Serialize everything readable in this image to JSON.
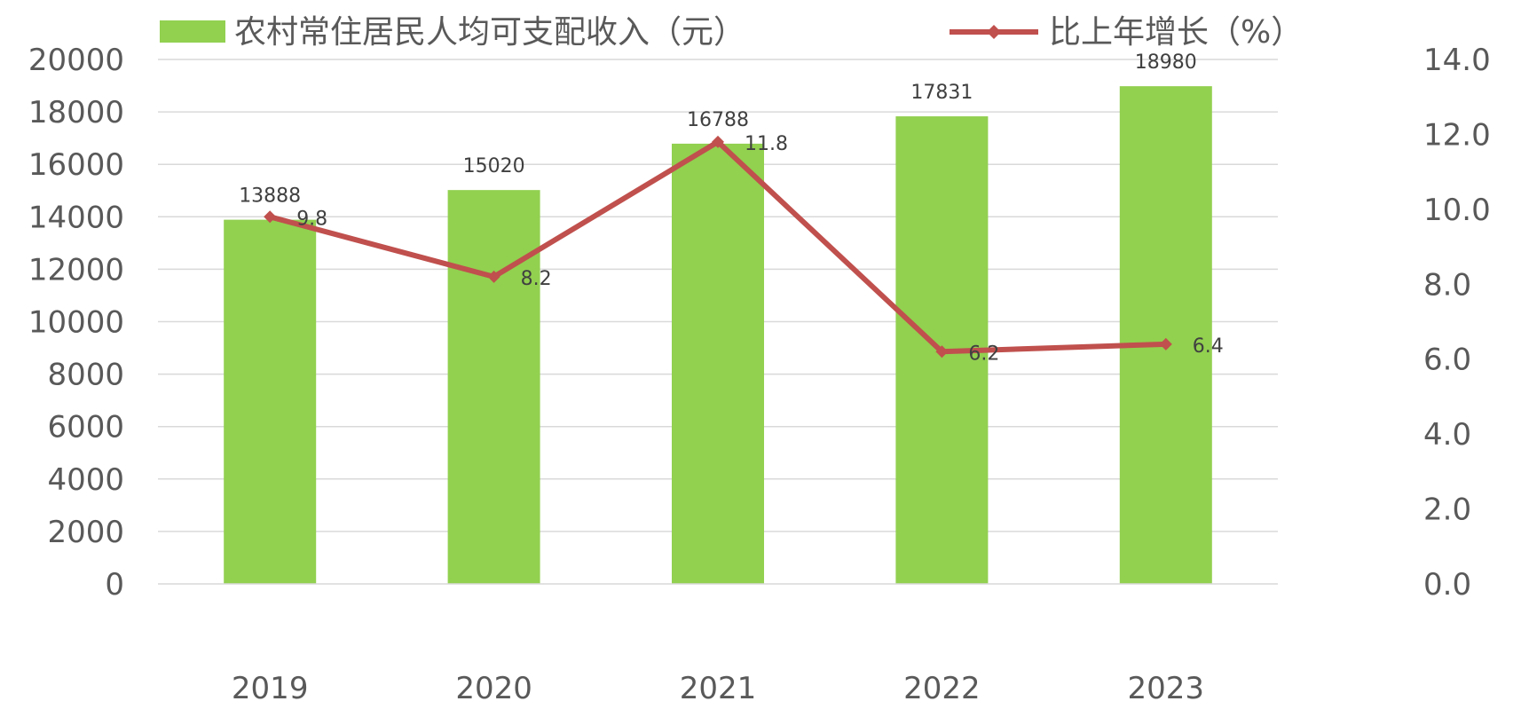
{
  "chart_data": {
    "type": "bar",
    "categories": [
      "2019",
      "2020",
      "2021",
      "2022",
      "2023"
    ],
    "series": [
      {
        "name": "农村常住居民人均可支配收入（元）",
        "type": "bar",
        "axis": "left",
        "values": [
          13888,
          15020,
          16788,
          17831,
          18980
        ],
        "data_labels": [
          "13888",
          "15020",
          "16788",
          "17831",
          "18980"
        ],
        "color": "#92D050"
      },
      {
        "name": "比上年增长（%）",
        "type": "line",
        "axis": "right",
        "values": [
          9.8,
          8.2,
          11.8,
          6.2,
          6.4
        ],
        "data_labels": [
          "9.8",
          "8.2",
          "11.8",
          "6.2",
          "6.4"
        ],
        "color": "#C0504D"
      }
    ],
    "y_left": {
      "ylim": [
        0,
        20000
      ],
      "ticks": [
        "0",
        "2000",
        "4000",
        "6000",
        "8000",
        "10000",
        "12000",
        "14000",
        "16000",
        "18000",
        "20000"
      ]
    },
    "y_right": {
      "ylim": [
        0,
        14
      ],
      "ticks": [
        "0.0",
        "2.0",
        "4.0",
        "6.0",
        "8.0",
        "10.0",
        "12.0",
        "14.0"
      ]
    },
    "grid": true,
    "legend_position": "top"
  }
}
